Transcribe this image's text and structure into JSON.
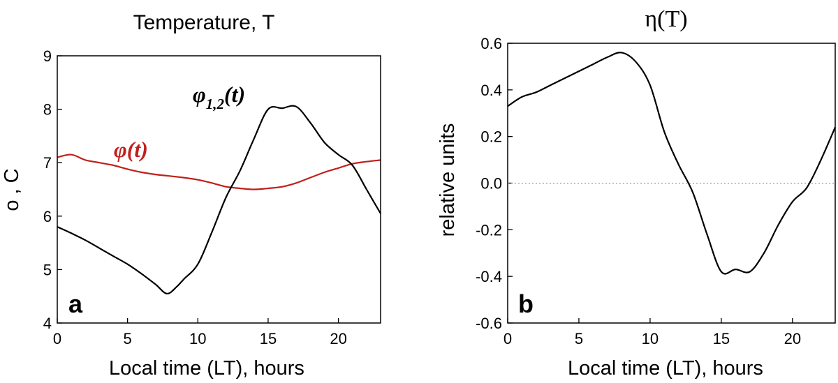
{
  "chart_data": [
    {
      "type": "line",
      "title": "Temperature, T",
      "xlabel": "Local time (LT), hours",
      "ylabel": "o , C",
      "panel_label": "a",
      "xlim": [
        0,
        23
      ],
      "ylim": [
        4,
        9
      ],
      "xticks": [
        0,
        5,
        10,
        15,
        20
      ],
      "yticks": [
        4,
        5,
        6,
        7,
        8,
        9
      ],
      "xtick_labels": [
        "0",
        "5",
        "10",
        "15",
        "20"
      ],
      "ytick_labels": [
        "4",
        "5",
        "6",
        "7",
        "8",
        "9"
      ],
      "series": [
        {
          "name": "φ(t)",
          "color": "#c0201c",
          "x": [
            0,
            1,
            2,
            3,
            4,
            5,
            6,
            7,
            8,
            9,
            10,
            11,
            12,
            13,
            14,
            15,
            16,
            17,
            18,
            19,
            20,
            21,
            22,
            23
          ],
          "y": [
            7.1,
            7.15,
            7.05,
            7.0,
            6.95,
            6.88,
            6.82,
            6.78,
            6.75,
            6.72,
            6.68,
            6.62,
            6.55,
            6.52,
            6.5,
            6.52,
            6.55,
            6.62,
            6.72,
            6.82,
            6.9,
            6.98,
            7.02,
            7.05
          ]
        },
        {
          "name": "φ1,2(t)",
          "name_main": "φ",
          "name_sub": "1,2",
          "name_tail": "(t)",
          "color": "#000000",
          "x": [
            0,
            1,
            2,
            3,
            4,
            5,
            6,
            7,
            7.8,
            8.5,
            9,
            10,
            11,
            12,
            13,
            14,
            15,
            16,
            17,
            18,
            19,
            20,
            21,
            22,
            23
          ],
          "y": [
            5.8,
            5.68,
            5.55,
            5.4,
            5.25,
            5.1,
            4.92,
            4.72,
            4.55,
            4.68,
            4.82,
            5.1,
            5.7,
            6.35,
            6.85,
            7.45,
            8.0,
            8.02,
            8.05,
            7.75,
            7.38,
            7.15,
            6.95,
            6.5,
            6.05
          ]
        }
      ]
    },
    {
      "type": "line",
      "title": "η(T)",
      "xlabel": "Local time (LT), hours",
      "ylabel": "relative units",
      "panel_label": "b",
      "xlim": [
        0,
        23
      ],
      "ylim": [
        -0.6,
        0.6
      ],
      "xticks": [
        0,
        5,
        10,
        15,
        20
      ],
      "yticks": [
        -0.6,
        -0.4,
        -0.2,
        0.0,
        0.2,
        0.4,
        0.6
      ],
      "xtick_labels": [
        "0",
        "5",
        "10",
        "15",
        "20"
      ],
      "ytick_labels": [
        "-0.6",
        "-0.4",
        "-0.2",
        "0.0",
        "0.2",
        "0.4",
        "0.6"
      ],
      "zero_line": true,
      "series": [
        {
          "color": "#000000",
          "x": [
            0,
            1,
            2,
            3,
            4,
            5,
            6,
            7,
            8,
            9,
            10,
            11,
            12,
            13,
            14,
            15,
            16,
            17,
            18,
            19,
            20,
            21,
            22,
            23
          ],
          "y": [
            0.33,
            0.37,
            0.39,
            0.42,
            0.45,
            0.48,
            0.51,
            0.54,
            0.56,
            0.52,
            0.42,
            0.22,
            0.08,
            -0.04,
            -0.22,
            -0.38,
            -0.37,
            -0.38,
            -0.3,
            -0.18,
            -0.08,
            -0.02,
            0.1,
            0.24
          ]
        }
      ]
    }
  ]
}
